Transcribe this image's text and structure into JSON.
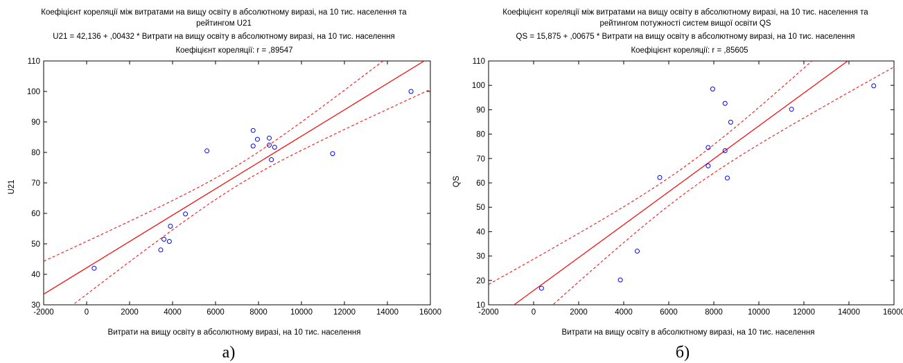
{
  "chart_data": [
    {
      "type": "scatter",
      "title_lines": [
        "Коефіцієнт кореляції між витратами на вищу освіту в абсолютному виразі, на 10 тис. населення та",
        "рейтингом U21"
      ],
      "equation": "U21 = 42,136 + ,00432 * Витрати на вищу освіту в абсолютному виразі, на 10 тис. населення",
      "correlation": "Коефіцієнт кореляції: r = ,89547",
      "xlabel": "Витрати на вищу освіту в абсолютному виразі, на 10 тис. населення",
      "ylabel": "U21",
      "xlim": [
        -2000,
        16000
      ],
      "ylim": [
        30,
        110
      ],
      "x_ticks": [
        -2000,
        0,
        2000,
        4000,
        6000,
        8000,
        10000,
        12000,
        14000,
        16000
      ],
      "y_ticks": [
        30,
        40,
        50,
        60,
        70,
        80,
        90,
        100,
        110
      ],
      "regression": {
        "intercept": 42.136,
        "slope": 0.00432
      },
      "ci_band": {
        "mean_x": 7100,
        "half_width_at_mean": 3.3,
        "half_width_at_min_x": 10.8
      },
      "points": [
        {
          "x": 350,
          "y": 42
        },
        {
          "x": 3450,
          "y": 48
        },
        {
          "x": 3600,
          "y": 51.5
        },
        {
          "x": 3850,
          "y": 50.8
        },
        {
          "x": 3900,
          "y": 55.8
        },
        {
          "x": 4600,
          "y": 59.8
        },
        {
          "x": 5600,
          "y": 80.5
        },
        {
          "x": 7750,
          "y": 87.2
        },
        {
          "x": 7750,
          "y": 82.1
        },
        {
          "x": 7950,
          "y": 84.3
        },
        {
          "x": 8500,
          "y": 84.7
        },
        {
          "x": 8500,
          "y": 82.4
        },
        {
          "x": 8600,
          "y": 77.6
        },
        {
          "x": 8750,
          "y": 81.7
        },
        {
          "x": 11450,
          "y": 79.6
        },
        {
          "x": 15100,
          "y": 100
        }
      ],
      "caption": "а)",
      "point_color": "#0000ff",
      "line_color": "#ff0000"
    },
    {
      "type": "scatter",
      "title_lines": [
        "Коефіцієнт кореляції між витратами на вищу освіту в абсолютному виразі, на 10 тис. населення та",
        "рейтингом потужності систем вищої освіти QS"
      ],
      "equation": "QS = 15,875 + ,00675 * Витрати на вищу освіту в абсолютному виразі, на 10 тис. населення",
      "correlation": "Коефіцієнт кореляції: r = ,85605",
      "xlabel": "Витрати на вищу освіту в абсолютному виразі, на 10 тис. населення",
      "ylabel": "QS",
      "xlim": [
        -2000,
        16000
      ],
      "ylim": [
        10,
        110
      ],
      "x_ticks": [
        -2000,
        0,
        2000,
        4000,
        6000,
        8000,
        10000,
        12000,
        14000,
        16000
      ],
      "y_ticks": [
        10,
        20,
        30,
        40,
        50,
        60,
        70,
        80,
        90,
        100,
        110
      ],
      "regression": {
        "intercept": 15.875,
        "slope": 0.00675
      },
      "ci_band": {
        "mean_x": 6900,
        "half_width_at_mean": 5.5,
        "half_width_at_min_x": 16
      },
      "points": [
        {
          "x": 350,
          "y": 16.8
        },
        {
          "x": 3850,
          "y": 20.2
        },
        {
          "x": 4600,
          "y": 32
        },
        {
          "x": 5600,
          "y": 62.2
        },
        {
          "x": 7750,
          "y": 74.5
        },
        {
          "x": 7750,
          "y": 67
        },
        {
          "x": 7950,
          "y": 98.5
        },
        {
          "x": 8500,
          "y": 92.6
        },
        {
          "x": 8500,
          "y": 73.2
        },
        {
          "x": 8600,
          "y": 62
        },
        {
          "x": 8750,
          "y": 84.9
        },
        {
          "x": 11450,
          "y": 90.2
        },
        {
          "x": 15100,
          "y": 99.8
        }
      ],
      "caption": "б)",
      "point_color": "#0000ff",
      "line_color": "#ff0000"
    }
  ]
}
